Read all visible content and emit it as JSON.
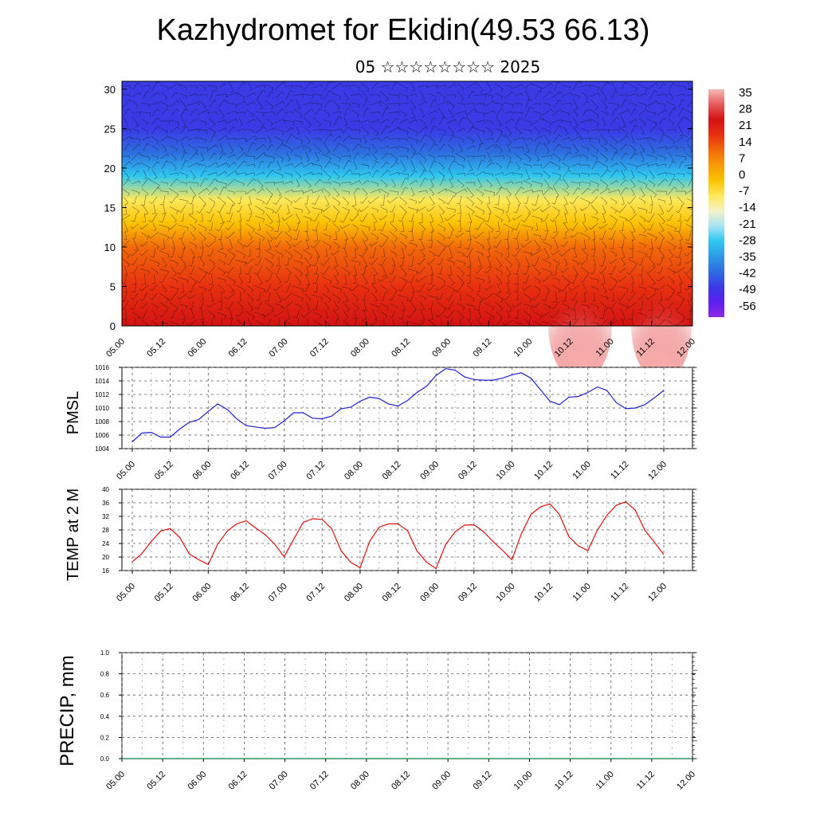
{
  "title": "Kazhydromet for Ekidin(49.53 66.13)",
  "subtitle": "05 ☆☆☆☆☆☆☆☆ 2025",
  "chart_data": [
    {
      "type": "heatmap",
      "name": "cross-section",
      "title": "",
      "xlabel": "",
      "ylabel": "",
      "x_tick_labels": [
        "05.00",
        "05.12",
        "06.00",
        "06.12",
        "07.00",
        "07.12",
        "08.00",
        "08.12",
        "09.00",
        "09.12",
        "10.00",
        "10.12",
        "11.00",
        "11.12",
        "12.00"
      ],
      "y_ticks": [
        0,
        5,
        10,
        15,
        20,
        25,
        30
      ],
      "ylim": [
        0,
        31
      ],
      "colorbar_labels": [
        "35",
        "28",
        "21",
        "14",
        "7",
        "0",
        "-7",
        "-14",
        "-21",
        "-28",
        "-35",
        "-42",
        "-49",
        "-56"
      ],
      "colorbar_range": [
        -63,
        42
      ],
      "profile": [
        {
          "height": 0,
          "value": 30
        },
        {
          "height": 5,
          "value": 22
        },
        {
          "height": 10,
          "value": 14
        },
        {
          "height": 13,
          "value": 0
        },
        {
          "height": 16,
          "value": -10
        },
        {
          "height": 19,
          "value": -25
        },
        {
          "height": 22,
          "value": -40
        },
        {
          "height": 25,
          "value": -52
        },
        {
          "height": 28,
          "value": -48
        },
        {
          "height": 31,
          "value": -46
        }
      ],
      "overlay": "wind barbs"
    },
    {
      "type": "line",
      "name": "PMSL",
      "ylabel": "PMSL",
      "ylim": [
        1004,
        1016
      ],
      "y_ticks": [
        1004,
        1006,
        1008,
        1010,
        1012,
        1014,
        1016
      ],
      "x_tick_labels": [
        "05.00",
        "05.12",
        "06.00",
        "06.12",
        "07.00",
        "07.12",
        "08.00",
        "08.12",
        "09.00",
        "09.12",
        "10.00",
        "10.12",
        "11.00",
        "11.12",
        "12.00"
      ],
      "color": "#1f1fd6",
      "x": [
        0,
        3,
        6,
        9,
        12,
        15,
        18,
        21,
        24,
        27,
        30,
        33,
        36,
        39,
        42,
        45,
        48,
        51,
        54,
        57,
        60,
        63,
        66,
        69,
        72,
        75,
        78,
        81,
        84,
        87,
        90,
        93,
        96,
        99,
        102,
        105,
        108,
        111,
        114,
        117,
        120,
        123,
        126,
        129,
        132,
        135,
        138,
        141,
        144,
        147,
        150,
        153,
        156,
        159,
        162,
        165,
        168
      ],
      "values": [
        1005.0,
        1006.3,
        1006.4,
        1005.7,
        1005.7,
        1006.9,
        1007.9,
        1008.3,
        1009.5,
        1010.6,
        1009.8,
        1008.4,
        1007.4,
        1007.2,
        1007.0,
        1007.1,
        1008.1,
        1009.3,
        1009.3,
        1008.5,
        1008.4,
        1008.8,
        1009.9,
        1010.1,
        1011.0,
        1011.6,
        1011.4,
        1010.6,
        1010.3,
        1011.1,
        1012.3,
        1013.2,
        1014.8,
        1015.8,
        1015.6,
        1014.6,
        1014.2,
        1014.1,
        1014.1,
        1014.4,
        1014.9,
        1015.2,
        1014.4,
        1012.7,
        1011.0,
        1010.5,
        1011.6,
        1011.7,
        1012.3,
        1013.1,
        1012.6,
        1010.8,
        1009.9,
        1010.0,
        1010.5,
        1011.5,
        1012.6
      ]
    },
    {
      "type": "line",
      "name": "TEMP at 2 M",
      "ylabel": "TEMP at 2 M",
      "ylim": [
        16,
        40
      ],
      "y_ticks": [
        16,
        20,
        24,
        28,
        32,
        36,
        40
      ],
      "x_tick_labels": [
        "05.00",
        "05.12",
        "06.00",
        "06.12",
        "07.00",
        "07.12",
        "08.00",
        "08.12",
        "09.00",
        "09.12",
        "10.00",
        "10.12",
        "11.00",
        "11.12",
        "12.00"
      ],
      "color": "#e01010",
      "x": [
        0,
        3,
        6,
        9,
        12,
        15,
        18,
        21,
        24,
        27,
        30,
        33,
        36,
        39,
        42,
        45,
        48,
        51,
        54,
        57,
        60,
        63,
        66,
        69,
        72,
        75,
        78,
        81,
        84,
        87,
        90,
        93,
        96,
        99,
        102,
        105,
        108,
        111,
        114,
        117,
        120,
        123,
        126,
        129,
        132,
        135,
        138,
        141,
        144,
        147,
        150,
        153,
        156,
        159,
        162,
        165,
        168
      ],
      "values": [
        18.6,
        21.0,
        24.6,
        27.7,
        28.4,
        25.8,
        20.9,
        19.2,
        17.8,
        23.8,
        27.6,
        29.8,
        30.7,
        28.6,
        26.6,
        23.8,
        20.1,
        25.2,
        30.2,
        31.3,
        31.1,
        28.4,
        21.9,
        18.5,
        16.8,
        24.6,
        28.8,
        29.8,
        29.8,
        27.8,
        21.8,
        18.5,
        16.6,
        23.6,
        27.4,
        29.4,
        29.5,
        27.5,
        24.6,
        22.0,
        19.2,
        26.9,
        32.6,
        34.8,
        35.7,
        32.6,
        26.0,
        23.3,
        21.9,
        27.9,
        32.3,
        35.3,
        36.3,
        33.8,
        27.9,
        24.4,
        20.7
      ]
    },
    {
      "type": "line",
      "name": "PRECIP, mm",
      "ylabel": "PRECIP, mm",
      "ylim": [
        0.0,
        1.0
      ],
      "y_tick_labels": [
        "0.0",
        "0.2",
        "0.4",
        "0.6",
        "0.8",
        "1.0"
      ],
      "x_tick_labels": [
        "05.00",
        "05.12",
        "06.00",
        "06.12",
        "07.00",
        "07.12",
        "08.00",
        "08.12",
        "09.00",
        "09.12",
        "10.00",
        "10.12",
        "11.00",
        "11.12",
        "12.00"
      ],
      "color": "#0a7a3a",
      "x": [
        0,
        168
      ],
      "values": [
        0.0,
        0.0
      ]
    }
  ]
}
